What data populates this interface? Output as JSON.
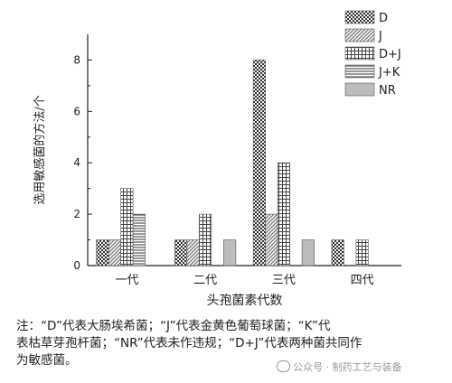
{
  "chart_data": {
    "type": "bar",
    "xlabel": "头孢菌素代数",
    "ylabel": "选用敏感菌的方法/个",
    "categories": [
      "一代",
      "二代",
      "三代",
      "四代"
    ],
    "series": [
      {
        "name": "D",
        "values": [
          1,
          1,
          8,
          1
        ],
        "pattern": "checker"
      },
      {
        "name": "J",
        "values": [
          1,
          1,
          2,
          0
        ],
        "pattern": "diag"
      },
      {
        "name": "D+J",
        "values": [
          3,
          2,
          4,
          1
        ],
        "pattern": "grid"
      },
      {
        "name": "J+K",
        "values": [
          2,
          0,
          0,
          0
        ],
        "pattern": "hlines"
      },
      {
        "name": "NR",
        "values": [
          0,
          1,
          1,
          0
        ],
        "pattern": "solid"
      }
    ],
    "ylim": [
      0,
      9
    ],
    "yticks": [
      0,
      2,
      4,
      6,
      8
    ],
    "legend": "top-right",
    "grid": false
  },
  "note": {
    "line1": "注：“D”代表大肠埃希菌；“J”代表金黄色葡萄球菌；“K”代",
    "line2": "表枯草芽孢杆菌；“NR”代表未作违规；“D+J”代表两种菌共同作",
    "line3": "为敏感菌。"
  },
  "watermark": "公众号 · 制药工艺与装备",
  "icons": {
    "watermark": "wechat-icon"
  }
}
